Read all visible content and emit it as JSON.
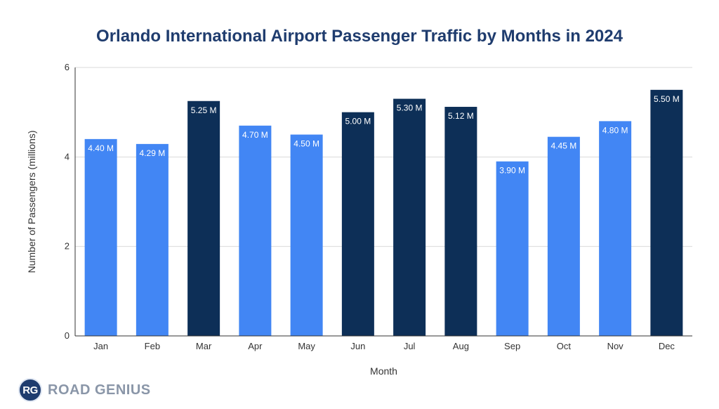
{
  "chart_data": {
    "type": "bar",
    "title": "Orlando International Airport Passenger Traffic by Months in 2024",
    "xlabel": "Month",
    "ylabel": "Number of Passengers (millions)",
    "ylim": [
      0,
      6
    ],
    "yticks": [
      "0",
      "2",
      "4",
      "6"
    ],
    "grid": true,
    "categories": [
      "Jan",
      "Feb",
      "Mar",
      "Apr",
      "May",
      "Jun",
      "Jul",
      "Aug",
      "Sep",
      "Oct",
      "Nov",
      "Dec"
    ],
    "values": [
      4.4,
      4.29,
      5.25,
      4.7,
      4.5,
      5.0,
      5.3,
      5.12,
      3.9,
      4.45,
      4.8,
      5.5
    ],
    "data_labels": [
      "4.40 M",
      "4.29 M",
      "5.25 M",
      "4.70 M",
      "4.50 M",
      "5.00 M",
      "5.30 M",
      "5.12 M",
      "3.90 M",
      "4.45 M",
      "4.80 M",
      "5.50 M"
    ],
    "highlighted": [
      false,
      false,
      true,
      false,
      false,
      true,
      true,
      true,
      false,
      false,
      false,
      true
    ],
    "colors": {
      "bar": "#4286f4",
      "bar_highlight": "#0d2f57",
      "title": "#1f3c6e",
      "grid": "#d9d9d9",
      "axis": "#333333"
    }
  },
  "brand": {
    "badge": "RG",
    "name": "ROAD GENIUS"
  }
}
